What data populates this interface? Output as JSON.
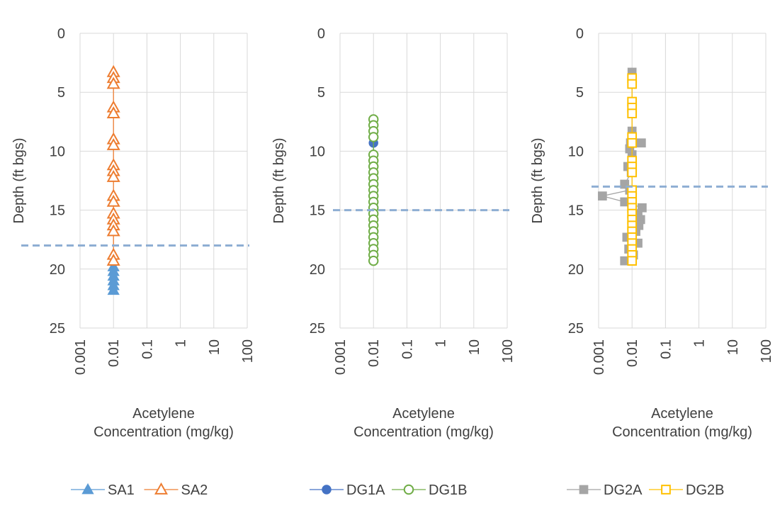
{
  "chart_data": [
    {
      "type": "scatter",
      "xlabel": "Acetylene Concentration (mg/kg)",
      "ylabel": "Depth (ft bgs)",
      "x_scale": "log",
      "xlim": [
        0.001,
        100
      ],
      "ylim": [
        0,
        25
      ],
      "y_inverted": true,
      "x_ticks": [
        "0.001",
        "0.01",
        "0.1",
        "1",
        "10",
        "100"
      ],
      "y_ticks": [
        "0",
        "5",
        "10",
        "15",
        "20",
        "25"
      ],
      "grid": true,
      "legend_position": "bottom",
      "reference_depth": 18,
      "series": [
        {
          "name": "SA1",
          "color": "#5b9bd5",
          "marker": "filled-triangle",
          "points": [
            [
              0.01,
              19.8
            ],
            [
              0.01,
              20.2
            ],
            [
              0.01,
              20.6
            ],
            [
              0.01,
              21.0
            ],
            [
              0.01,
              21.4
            ],
            [
              0.01,
              21.8
            ]
          ]
        },
        {
          "name": "SA2",
          "color": "#ed7d31",
          "marker": "open-triangle",
          "points": [
            [
              0.01,
              3.3
            ],
            [
              0.01,
              3.8
            ],
            [
              0.01,
              4.3
            ],
            [
              0.01,
              6.3
            ],
            [
              0.01,
              6.8
            ],
            [
              0.01,
              9.0
            ],
            [
              0.01,
              9.5
            ],
            [
              0.01,
              11.2
            ],
            [
              0.01,
              11.7
            ],
            [
              0.01,
              12.2
            ],
            [
              0.01,
              13.8
            ],
            [
              0.01,
              14.3
            ],
            [
              0.01,
              15.3
            ],
            [
              0.01,
              15.8
            ],
            [
              0.01,
              16.3
            ],
            [
              0.01,
              16.8
            ],
            [
              0.01,
              18.8
            ],
            [
              0.01,
              19.3
            ]
          ]
        }
      ]
    },
    {
      "type": "scatter",
      "xlabel": "Acetylene Concentration (mg/kg)",
      "ylabel": "Depth (ft bgs)",
      "x_scale": "log",
      "xlim": [
        0.001,
        100
      ],
      "ylim": [
        0,
        25
      ],
      "y_inverted": true,
      "x_ticks": [
        "0.001",
        "0.01",
        "0.1",
        "1",
        "10",
        "100"
      ],
      "y_ticks": [
        "0",
        "5",
        "10",
        "15",
        "20",
        "25"
      ],
      "grid": true,
      "legend_position": "bottom",
      "reference_depth": 15,
      "series": [
        {
          "name": "DG1A",
          "color": "#4472c4",
          "marker": "filled-circle",
          "points": [
            [
              0.01,
              7.3
            ],
            [
              0.01,
              9.3
            ],
            [
              0.01,
              10.8
            ],
            [
              0.01,
              11.8
            ],
            [
              0.01,
              12.8
            ],
            [
              0.01,
              13.8
            ],
            [
              0.01,
              14.8
            ],
            [
              0.01,
              15.8
            ],
            [
              0.01,
              16.8
            ],
            [
              0.01,
              17.8
            ],
            [
              0.01,
              18.8
            ],
            [
              0.01,
              19.3
            ]
          ]
        },
        {
          "name": "DG1B",
          "color": "#70ad47",
          "marker": "open-circle",
          "points": [
            [
              0.01,
              7.3
            ],
            [
              0.01,
              7.8
            ],
            [
              0.01,
              8.3
            ],
            [
              0.01,
              8.8
            ],
            [
              0.01,
              10.3
            ],
            [
              0.01,
              10.8
            ],
            [
              0.01,
              11.3
            ],
            [
              0.01,
              11.8
            ],
            [
              0.01,
              12.3
            ],
            [
              0.01,
              12.8
            ],
            [
              0.01,
              13.3
            ],
            [
              0.01,
              13.8
            ],
            [
              0.01,
              14.3
            ],
            [
              0.01,
              14.8
            ],
            [
              0.01,
              15.3
            ],
            [
              0.01,
              15.8
            ],
            [
              0.01,
              16.3
            ],
            [
              0.01,
              16.8
            ],
            [
              0.01,
              17.3
            ],
            [
              0.01,
              17.8
            ],
            [
              0.01,
              18.3
            ],
            [
              0.01,
              18.8
            ],
            [
              0.01,
              19.3
            ]
          ]
        }
      ]
    },
    {
      "type": "scatter",
      "xlabel": "Acetylene Concentration (mg/kg)",
      "ylabel": "Depth (ft bgs)",
      "x_scale": "log",
      "xlim": [
        0.001,
        100
      ],
      "ylim": [
        0,
        25
      ],
      "y_inverted": true,
      "x_ticks": [
        "0.001",
        "0.01",
        "0.1",
        "1",
        "10",
        "100"
      ],
      "y_ticks": [
        "0",
        "5",
        "10",
        "15",
        "20",
        "25"
      ],
      "grid": true,
      "legend_position": "bottom",
      "reference_depth": 13,
      "series": [
        {
          "name": "DG2A",
          "color": "#a5a5a5",
          "marker": "filled-square",
          "points": [
            [
              0.01,
              3.3
            ],
            [
              0.01,
              3.8
            ],
            [
              0.01,
              5.8
            ],
            [
              0.01,
              6.3
            ],
            [
              0.01,
              8.3
            ],
            [
              0.01,
              8.8
            ],
            [
              0.009,
              9.3
            ],
            [
              0.019,
              9.3
            ],
            [
              0.0085,
              9.8
            ],
            [
              0.01,
              10.3
            ],
            [
              0.0075,
              11.3
            ],
            [
              0.0095,
              11.8
            ],
            [
              0.006,
              12.8
            ],
            [
              0.0085,
              13.3
            ],
            [
              0.0013,
              13.8
            ],
            [
              0.006,
              14.3
            ],
            [
              0.02,
              14.8
            ],
            [
              0.015,
              15.3
            ],
            [
              0.018,
              15.8
            ],
            [
              0.016,
              16.3
            ],
            [
              0.013,
              16.8
            ],
            [
              0.007,
              17.3
            ],
            [
              0.015,
              17.8
            ],
            [
              0.008,
              18.3
            ],
            [
              0.011,
              18.8
            ],
            [
              0.006,
              19.3
            ]
          ]
        },
        {
          "name": "DG2B",
          "color": "#ffc000",
          "marker": "open-square",
          "points": [
            [
              0.01,
              3.8
            ],
            [
              0.01,
              4.3
            ],
            [
              0.01,
              5.8
            ],
            [
              0.01,
              6.3
            ],
            [
              0.01,
              6.8
            ],
            [
              0.01,
              8.8
            ],
            [
              0.01,
              9.3
            ],
            [
              0.01,
              10.8
            ],
            [
              0.01,
              11.3
            ],
            [
              0.01,
              11.8
            ],
            [
              0.01,
              13.3
            ],
            [
              0.01,
              13.8
            ],
            [
              0.01,
              14.3
            ],
            [
              0.01,
              14.8
            ],
            [
              0.01,
              15.3
            ],
            [
              0.01,
              15.8
            ],
            [
              0.01,
              16.3
            ],
            [
              0.01,
              16.8
            ],
            [
              0.01,
              17.3
            ],
            [
              0.01,
              17.8
            ],
            [
              0.01,
              18.3
            ],
            [
              0.01,
              18.8
            ],
            [
              0.01,
              19.3
            ]
          ]
        }
      ]
    }
  ],
  "colors": {
    "reference_line": "#8eaed3",
    "grid": "#d9d9d9",
    "text": "#404040"
  }
}
